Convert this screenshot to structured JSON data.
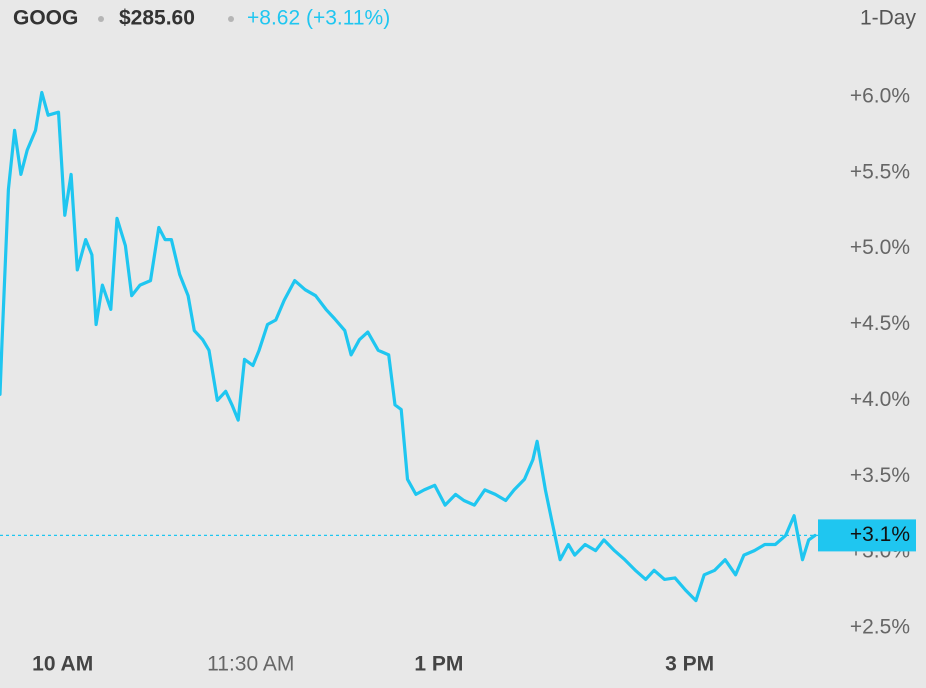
{
  "chart_data": {
    "type": "line",
    "symbol": "GOOG",
    "price": "$285.60",
    "change": "+8.62 (+3.11%)",
    "period": "1-Day",
    "color": "#1fc6f0",
    "x": [
      570,
      571,
      574,
      577,
      580,
      583,
      587,
      590,
      593,
      598,
      601,
      604,
      607,
      611,
      614,
      616,
      619,
      623,
      626,
      630,
      633,
      637,
      642,
      646,
      649,
      652,
      656,
      660,
      663,
      667,
      670,
      674,
      678,
      681,
      684,
      687,
      691,
      694,
      698,
      702,
      706,
      711,
      716,
      721,
      726,
      730,
      735,
      738,
      742,
      746,
      751,
      756,
      759,
      762,
      765,
      769,
      773,
      778,
      783,
      788,
      792,
      797,
      802,
      807,
      812,
      816,
      821,
      825,
      827,
      831,
      834,
      838,
      842,
      845,
      850,
      855,
      859,
      864,
      869,
      874,
      879,
      883,
      888,
      893,
      898,
      903,
      907,
      912,
      917,
      922,
      926,
      931,
      936,
      941,
      946,
      950,
      954,
      957,
      960
    ],
    "values": [
      4.04,
      4.4,
      5.39,
      5.78,
      5.49,
      5.65,
      5.78,
      6.03,
      5.88,
      5.9,
      5.22,
      5.49,
      4.86,
      5.06,
      4.96,
      4.5,
      4.76,
      4.6,
      5.2,
      5.02,
      4.69,
      4.76,
      4.79,
      5.14,
      5.06,
      5.06,
      4.83,
      4.69,
      4.46,
      4.4,
      4.33,
      4.0,
      4.06,
      3.97,
      3.87,
      4.27,
      4.23,
      4.33,
      4.5,
      4.53,
      4.66,
      4.79,
      4.73,
      4.69,
      4.6,
      4.54,
      4.46,
      4.3,
      4.4,
      4.45,
      4.33,
      4.3,
      3.97,
      3.94,
      3.48,
      3.38,
      3.41,
      3.44,
      3.31,
      3.38,
      3.34,
      3.31,
      3.41,
      3.38,
      3.34,
      3.41,
      3.48,
      3.61,
      3.73,
      3.41,
      3.21,
      2.95,
      3.05,
      2.98,
      3.05,
      3.01,
      3.08,
      3.01,
      2.95,
      2.88,
      2.82,
      2.88,
      2.82,
      2.83,
      2.75,
      2.68,
      2.85,
      2.88,
      2.95,
      2.85,
      2.98,
      3.01,
      3.05,
      3.05,
      3.11,
      3.24,
      2.95,
      3.08,
      3.11
    ],
    "xlim": [
      570,
      960
    ],
    "xticks": [
      {
        "value": 600,
        "label": "10 AM"
      },
      {
        "value": 690,
        "label": "11:30 AM"
      },
      {
        "value": 780,
        "label": "1 PM"
      },
      {
        "value": 900,
        "label": "3 PM"
      }
    ],
    "ylim": [
      2.4,
      6.3
    ],
    "yticks": [
      {
        "value": 2.5,
        "label": "+2.5%"
      },
      {
        "value": 3.0,
        "label": "+3.0%"
      },
      {
        "value": 3.5,
        "label": "+3.5%"
      },
      {
        "value": 4.0,
        "label": "+4.0%"
      },
      {
        "value": 4.5,
        "label": "+4.5%"
      },
      {
        "value": 5.0,
        "label": "+5.0%"
      },
      {
        "value": 5.5,
        "label": "+5.5%"
      },
      {
        "value": 6.0,
        "label": "+6.0%"
      }
    ],
    "reference_line": {
      "value": 3.11,
      "label": "+3.1%"
    },
    "grid": false
  }
}
